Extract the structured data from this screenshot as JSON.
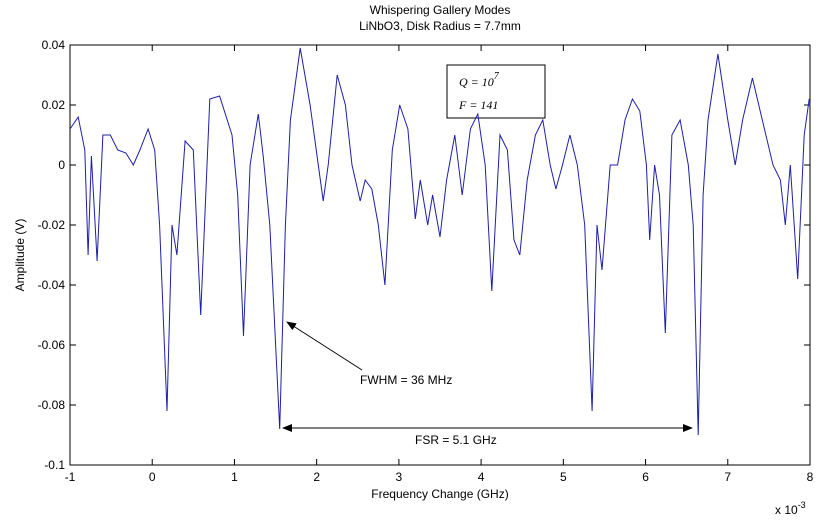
{
  "chart_data": {
    "type": "line",
    "title": "Whispering Gallery Modes",
    "subtitle": "LiNbO3, Disk Radius = 7.7mm",
    "xlabel": "Frequency Change (GHz)",
    "ylabel": "Amplitude (V)",
    "x_multiplier": {
      "text": "x 10",
      "sup": "-3"
    },
    "box_lines": [
      {
        "text": "Q = 10",
        "sup": "7"
      },
      {
        "text": "F = 141"
      }
    ],
    "annotations": [
      "FWHM = 36 MHz",
      "FSR = 5.1 GHz"
    ],
    "color": "#1f1fa8",
    "xlim": [
      -1,
      8
    ],
    "ylim": [
      -0.1,
      0.04
    ],
    "xticks": [
      -1,
      0,
      1,
      2,
      3,
      4,
      5,
      6,
      7,
      8
    ],
    "yticks": [
      -0.1,
      -0.08,
      -0.06,
      -0.04,
      -0.02,
      0,
      0.02,
      0.04
    ],
    "x": [
      -1,
      -0.9,
      -0.82,
      -0.78,
      -0.74,
      -0.67,
      -0.6,
      -0.51,
      -0.42,
      -0.32,
      -0.23,
      -0.15,
      -0.05,
      0.03,
      0.09,
      0.18,
      0.24,
      0.3,
      0.4,
      0.5,
      0.59,
      0.7,
      0.82,
      0.97,
      1.04,
      1.11,
      1.19,
      1.29,
      1.35,
      1.43,
      1.55,
      1.62,
      1.68,
      1.8,
      1.92,
      2.02,
      2.08,
      2.14,
      2.25,
      2.35,
      2.43,
      2.53,
      2.59,
      2.67,
      2.75,
      2.83,
      2.92,
      3.01,
      3.11,
      3.2,
      3.26,
      3.35,
      3.41,
      3.5,
      3.58,
      3.68,
      3.77,
      3.87,
      3.96,
      4.05,
      4.13,
      4.23,
      4.32,
      4.4,
      4.47,
      4.56,
      4.66,
      4.75,
      4.84,
      4.91,
      4.99,
      5.08,
      5.17,
      5.26,
      5.35,
      5.41,
      5.47,
      5.57,
      5.66,
      5.75,
      5.84,
      5.93,
      6.01,
      6.05,
      6.11,
      6.17,
      6.24,
      6.32,
      6.42,
      6.52,
      6.58,
      6.64,
      6.7,
      6.76,
      6.88,
      7.0,
      7.09,
      7.18,
      7.3,
      7.42,
      7.55,
      7.64,
      7.7,
      7.76,
      7.85,
      7.93,
      7.99,
      8.0
    ],
    "values": [
      0.012,
      0.016,
      0.005,
      -0.03,
      0.003,
      -0.032,
      0.01,
      0.01,
      0.005,
      0.004,
      0.0,
      0.005,
      0.012,
      0.005,
      -0.02,
      -0.082,
      -0.02,
      -0.03,
      0.008,
      0.005,
      -0.05,
      0.022,
      0.023,
      0.01,
      -0.01,
      -0.057,
      0.0,
      0.017,
      0.003,
      -0.02,
      -0.088,
      -0.02,
      0.015,
      0.039,
      0.02,
      0.0,
      -0.012,
      0.0,
      0.03,
      0.02,
      0.0,
      -0.012,
      -0.005,
      -0.008,
      -0.02,
      -0.04,
      0.005,
      0.02,
      0.012,
      -0.018,
      -0.005,
      -0.02,
      -0.01,
      -0.024,
      -0.005,
      0.01,
      -0.01,
      0.012,
      0.017,
      0.0,
      -0.042,
      0.01,
      0.005,
      -0.025,
      -0.03,
      -0.005,
      0.01,
      0.015,
      0.0,
      -0.008,
      0.0,
      0.01,
      0.0,
      -0.02,
      -0.082,
      -0.02,
      -0.035,
      0.0,
      0.0,
      0.015,
      0.022,
      0.018,
      0.0,
      -0.025,
      0.0,
      -0.01,
      -0.056,
      0.01,
      0.015,
      0.0,
      -0.02,
      -0.09,
      -0.01,
      0.015,
      0.037,
      0.015,
      0.0,
      0.015,
      0.029,
      0.015,
      0.0,
      -0.005,
      -0.02,
      0.0,
      -0.038,
      0.01,
      0.022,
      0.02
    ]
  }
}
